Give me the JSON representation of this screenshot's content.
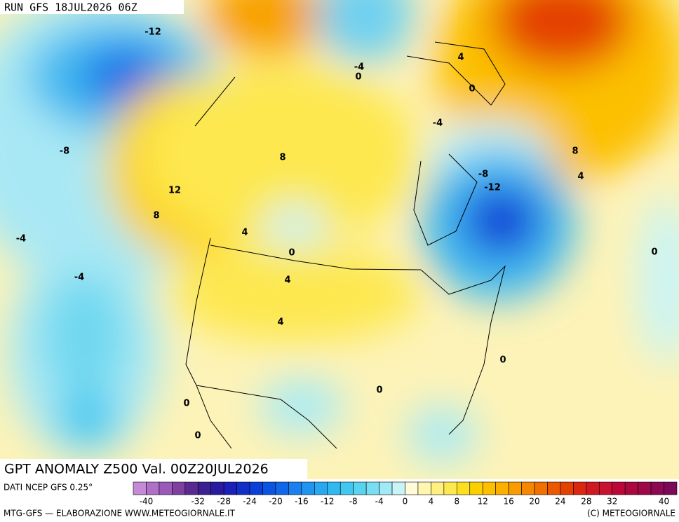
{
  "header": {
    "run": "RUN GFS 18JUL2026 06Z"
  },
  "map": {
    "title": "GPT ANOMALY Z500 Val. 00Z20JUL2026",
    "contour_labels": [
      -12,
      -4,
      0,
      4,
      0,
      -4,
      -8,
      8,
      8,
      -8,
      4,
      -12,
      12,
      8,
      4,
      -4,
      0,
      0,
      -4,
      4,
      4,
      0,
      0,
      0,
      0
    ]
  },
  "colorbar": {
    "source": "DATI NCEP GFS 0.25°",
    "range": [
      -42,
      42
    ],
    "colors": [
      "#c58ad6",
      "#b070c8",
      "#9a58b8",
      "#7f40a0",
      "#5a2a90",
      "#3a2090",
      "#2a1aa0",
      "#1c20b8",
      "#1030c8",
      "#0a40d8",
      "#0a55e0",
      "#1068e8",
      "#1a80f0",
      "#2095f0",
      "#28a8f0",
      "#30b8f0",
      "#40c8f0",
      "#58d4f0",
      "#78dff2",
      "#a0eaf5",
      "#c8f4f8",
      "#fffbd8",
      "#fff6b0",
      "#fff080",
      "#fde850",
      "#fce020",
      "#fcd000",
      "#fcc000",
      "#fbb000",
      "#f89c00",
      "#f58800",
      "#f07000",
      "#ea5800",
      "#e44000",
      "#dc2810",
      "#d01820",
      "#c81030",
      "#bc0838",
      "#ac0840",
      "#9c0848",
      "#8c0850",
      "#7c0858"
    ],
    "ticks": [
      -40,
      -32,
      -28,
      -24,
      -20,
      -16,
      -12,
      -8,
      -4,
      0,
      4,
      8,
      12,
      16,
      20,
      24,
      28,
      32,
      40
    ]
  },
  "footer": {
    "left": "MTG-GFS — ELABORAZIONE WWW.METEOGIORNALE.IT",
    "right": "(C) METEOGIORNALE"
  }
}
